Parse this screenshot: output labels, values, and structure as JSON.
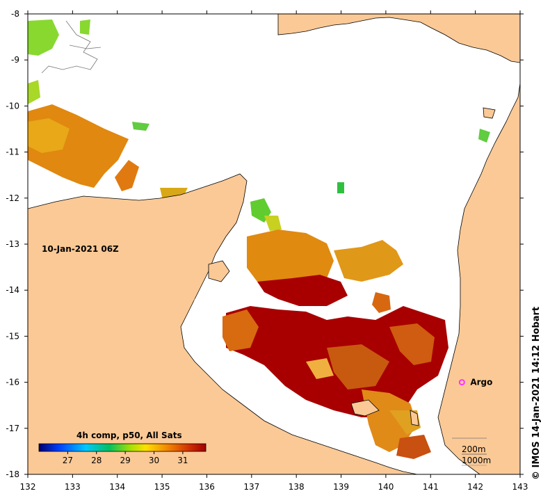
{
  "map": {
    "date_label": "10-Jan-2021 06Z",
    "composite_label": "4h comp, p50, All Sats",
    "credit": "© IMOS 14-Jan-2021 14:12 Hobart",
    "argo_label": "Argo",
    "argo_lon": 141.7,
    "argo_lat": -16.0,
    "contour_labels": [
      "200m",
      "1000m"
    ],
    "x_ticks": [
      "132",
      "133",
      "134",
      "135",
      "136",
      "137",
      "138",
      "139",
      "140",
      "141",
      "142",
      "143"
    ],
    "y_ticks": [
      "-8",
      "-9",
      "-10",
      "-11",
      "-12",
      "-13",
      "-14",
      "-15",
      "-16",
      "-17",
      "-18"
    ],
    "colorbar_ticks": [
      "27",
      "28",
      "29",
      "30",
      "31"
    ],
    "colors": {
      "land": "#fbc996",
      "argo": "#ff33ff",
      "sst_warm": "#a80000",
      "sst_orange": "#e07b10",
      "sst_yellow": "#e8c020",
      "sst_green": "#60cc30"
    }
  }
}
